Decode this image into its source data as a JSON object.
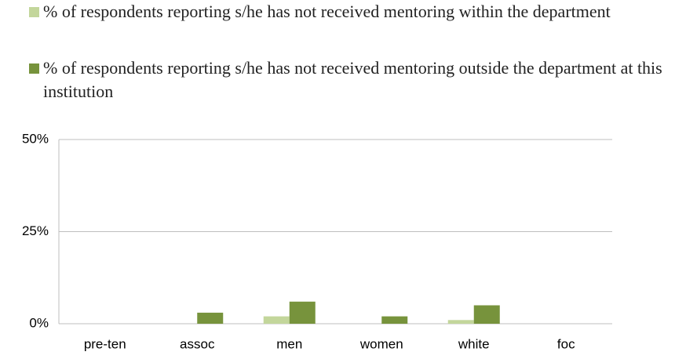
{
  "chart_data": {
    "type": "bar",
    "categories": [
      "pre-ten",
      "assoc",
      "men",
      "women",
      "white",
      "foc"
    ],
    "series": [
      {
        "name": "% of respondents reporting s/he has not received mentoring within the department",
        "color": "#c3d69b",
        "values": [
          0,
          0,
          2,
          0,
          1,
          0
        ]
      },
      {
        "name": "% of respondents reporting s/he has not received mentoring outside the department at this institution",
        "color": "#77933c",
        "values": [
          0,
          3,
          6,
          2,
          5,
          0
        ]
      }
    ],
    "ylim": [
      0,
      50
    ],
    "yticks": [
      {
        "value": 0,
        "label": "0%"
      },
      {
        "value": 25,
        "label": "25%"
      },
      {
        "value": 50,
        "label": "50%"
      }
    ],
    "grid": true,
    "legend": "top"
  }
}
